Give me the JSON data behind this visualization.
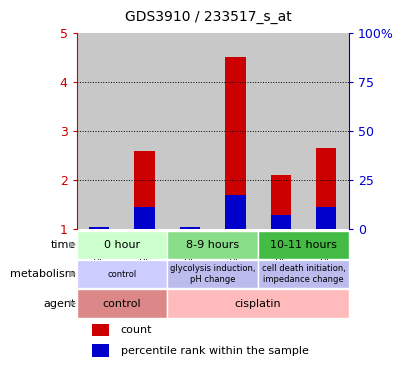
{
  "title": "GDS3910 / 233517_s_at",
  "samples": [
    "GSM699776",
    "GSM699777",
    "GSM699778",
    "GSM699779",
    "GSM699780",
    "GSM699781"
  ],
  "bar_heights": [
    1.05,
    2.6,
    1.05,
    4.5,
    2.1,
    2.65
  ],
  "blue_heights": [
    1.05,
    1.45,
    1.05,
    1.7,
    1.3,
    1.45
  ],
  "left_ylim": [
    1,
    5
  ],
  "right_ylim": [
    0,
    100
  ],
  "left_yticks": [
    1,
    2,
    3,
    4,
    5
  ],
  "right_yticks": [
    0,
    25,
    50,
    75,
    100
  ],
  "left_yticklabels": [
    "1",
    "2",
    "3",
    "4",
    "5"
  ],
  "right_yticklabels": [
    "0",
    "25",
    "50",
    "75",
    "100%"
  ],
  "bar_color": "#cc0000",
  "blue_color": "#0000cc",
  "left_tick_color": "#cc0000",
  "right_tick_color": "#0000cc",
  "sample_bg": "#c8c8c8",
  "time_groups": [
    {
      "label": "0 hour",
      "span": [
        0,
        2
      ],
      "color": "#ccffcc"
    },
    {
      "label": "8-9 hours",
      "span": [
        2,
        4
      ],
      "color": "#88dd88"
    },
    {
      "label": "10-11 hours",
      "span": [
        4,
        6
      ],
      "color": "#44bb44"
    }
  ],
  "metabolism_groups": [
    {
      "label": "control",
      "span": [
        0,
        2
      ],
      "color": "#ccccff"
    },
    {
      "label": "glycolysis induction,\npH change",
      "span": [
        2,
        4
      ],
      "color": "#bbbbee"
    },
    {
      "label": "cell death initiation,\nimpedance change",
      "span": [
        4,
        6
      ],
      "color": "#bbbbee"
    }
  ],
  "agent_groups": [
    {
      "label": "control",
      "span": [
        0,
        2
      ],
      "color": "#dd8888"
    },
    {
      "label": "cisplatin",
      "span": [
        2,
        6
      ],
      "color": "#ffbbbb"
    }
  ],
  "legend_items": [
    {
      "label": "count",
      "color": "#cc0000"
    },
    {
      "label": "percentile rank within the sample",
      "color": "#0000cc"
    }
  ]
}
